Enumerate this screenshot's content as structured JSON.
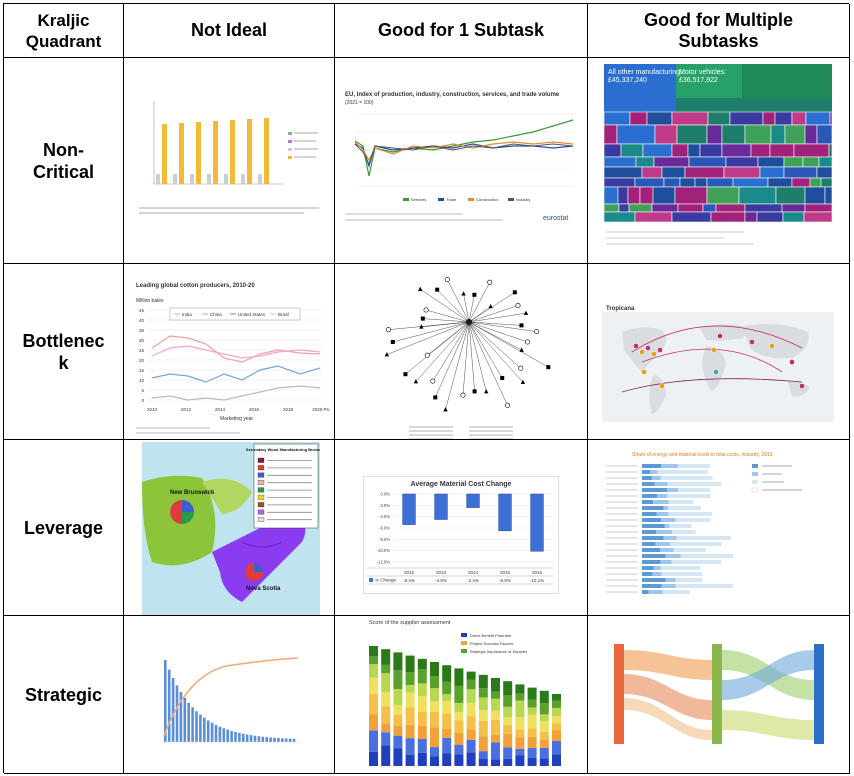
{
  "header": {
    "corner": "Kraljic Quadrant",
    "columns": [
      "Not Ideal",
      "Good for 1 Subtask",
      "Good for Multiple Subtasks"
    ]
  },
  "rows": [
    "Non-Critical",
    "Bottleneck",
    "Leverage",
    "Strategic"
  ],
  "thumbnails": {
    "r1c2": {
      "title": "EU, Index of production, industry, construction, services, and trade volume",
      "subtitle": "(2021 = 100)",
      "legend": [
        "Services",
        "Trade",
        "Construction",
        "Industry"
      ],
      "brand": "eurostat"
    },
    "r1c3": {
      "big_label": "All other manufacturing:",
      "big_value": "£45,337,240",
      "mid_label": "Motor vehicles:",
      "mid_value": "£36,517,922"
    },
    "r2c1": {
      "title": "Leading global cotton producers, 2010-20",
      "unit": "Million bales",
      "legend": [
        "India",
        "China",
        "United States",
        "Brazil"
      ],
      "xticks": [
        "2010",
        "2012",
        "2014",
        "2016",
        "2018",
        "2020-Proj"
      ],
      "yticks": [
        "45",
        "40",
        "35",
        "30",
        "25",
        "20",
        "15",
        "10",
        "5",
        "0"
      ],
      "xlabel": "Marketing year"
    },
    "r2c3": {
      "title": "Tropicana"
    },
    "r3c1": {
      "legend_title": "Secondary Wood Manufacturing Business",
      "region1": "New Brunswick",
      "region2": "Nova Scotia"
    },
    "r3c2": {
      "title": "Average Material Cost Change",
      "years": [
        "2012",
        "2013",
        "2014",
        "2015",
        "2016"
      ],
      "labels": [
        "-5.4%",
        "-4.5%",
        "-2.4%",
        "-6.5%",
        "-10.1%"
      ],
      "row_label": "% Change"
    },
    "r3c3": {
      "title": "Share of energy and material costs in total costs, industry, 2019"
    },
    "r4c2": {
      "title": "Score of the supplier assessment",
      "legend": [
        "Direct Benefit Potential",
        "Project Success Factors",
        "Strategic Importance of Supplier"
      ]
    }
  },
  "chart_data": [
    {
      "type": "bar",
      "title": "Average Material Cost Change",
      "categories": [
        "2012",
        "2013",
        "2014",
        "2015",
        "2016"
      ],
      "values": [
        -5.4,
        -4.5,
        -2.4,
        -6.5,
        -10.1
      ],
      "ylim": [
        -12,
        0
      ]
    }
  ],
  "colors": {
    "border": "#000000",
    "yellow_bar": "#f5b93a",
    "blue_treemap": "#1f4e9c",
    "teal_treemap": "#1f7d6b",
    "purple_region": "#8c3cf0"
  }
}
